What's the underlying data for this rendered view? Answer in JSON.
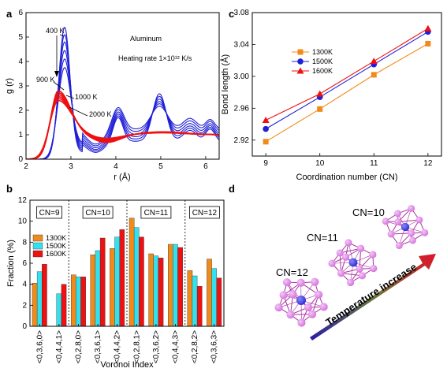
{
  "panels": {
    "a": "a",
    "b": "b",
    "c": "c",
    "d": "d"
  },
  "chart_data": [
    {
      "panel": "a",
      "type": "line",
      "xlabel": "r (Å)",
      "ylabel": "g (r)",
      "xlim": [
        2,
        6.3
      ],
      "ylim": [
        0,
        6
      ],
      "xticks": [
        "2",
        "3",
        "4",
        "5",
        "6"
      ],
      "yticks": [
        "0",
        "1",
        "2",
        "3",
        "4",
        "5",
        "6"
      ],
      "annotations": {
        "material": "Aluminum",
        "rate": "Heating rate 1×10¹² K/s",
        "t400": "400 K",
        "t900": "900 K",
        "t1000": "1000 K",
        "t2000": "2000 K"
      },
      "series": [
        {
          "color": "#1f1fd8",
          "temperature": 400,
          "peak1": 5.4,
          "min1": 0.28,
          "peak2": 2.95
        },
        {
          "color": "#1f1fd8",
          "temperature": 500,
          "peak1": 5.1,
          "min1": 0.34,
          "peak2": 2.75
        },
        {
          "color": "#1f1fd8",
          "temperature": 600,
          "peak1": 4.8,
          "min1": 0.4,
          "peak2": 2.55
        },
        {
          "color": "#1f1fd8",
          "temperature": 700,
          "peak1": 4.45,
          "min1": 0.47,
          "peak2": 2.35
        },
        {
          "color": "#1f1fd8",
          "temperature": 800,
          "peak1": 4.1,
          "min1": 0.55,
          "peak2": 2.15
        },
        {
          "color": "#1f1fd8",
          "temperature": 900,
          "peak1": 3.75,
          "min1": 0.62,
          "peak2": 1.95
        },
        {
          "color": "#ee1111",
          "temperature": 1000,
          "peak1": 2.8,
          "min1": 0.68
        },
        {
          "color": "#ee1111",
          "temperature": 1200,
          "peak1": 2.72,
          "min1": 0.72
        },
        {
          "color": "#ee1111",
          "temperature": 1400,
          "peak1": 2.64,
          "min1": 0.76
        },
        {
          "color": "#ee1111",
          "temperature": 1600,
          "peak1": 2.56,
          "min1": 0.79
        },
        {
          "color": "#ee1111",
          "temperature": 1800,
          "peak1": 2.48,
          "min1": 0.82
        },
        {
          "color": "#ee1111",
          "temperature": 2000,
          "peak1": 2.4,
          "min1": 0.85
        }
      ]
    },
    {
      "panel": "b",
      "type": "bar",
      "xlabel": "Voronoi Index",
      "ylabel": "Fraction (%)",
      "ylim": [
        0,
        12
      ],
      "yticks": [
        "0",
        "2",
        "4",
        "6",
        "8",
        "10",
        "12"
      ],
      "categories": [
        "<0,3,6,0>",
        "<0,4,4,1>",
        "<0,2,8,0>",
        "<0,3,6,1>",
        "<0,4,4,2>",
        "<0,2,8,1>",
        "<0,3,6,2>",
        "<0,4,4,3>",
        "<0,2,8,2>",
        "<0,3,6,3>"
      ],
      "groups": [
        {
          "label": "CN=9",
          "from": 0,
          "to": 1
        },
        {
          "label": "CN=10",
          "from": 2,
          "to": 4
        },
        {
          "label": "CN=11",
          "from": 5,
          "to": 7
        },
        {
          "label": "CN=12",
          "from": 8,
          "to": 9
        }
      ],
      "legend_position": "left",
      "series": [
        {
          "name": "1300K",
          "color": "#f08a1a",
          "values": [
            4.1,
            0,
            4.9,
            6.8,
            7.4,
            10.3,
            6.9,
            7.8,
            5.3,
            6.4
          ]
        },
        {
          "name": "1500K",
          "color": "#33e1ee",
          "values": [
            5.2,
            3.1,
            4.7,
            7.2,
            8.5,
            9.4,
            6.7,
            7.8,
            4.8,
            5.5
          ]
        },
        {
          "name": "1600K",
          "color": "#ee1111",
          "values": [
            5.9,
            4.0,
            4.7,
            8.4,
            9.2,
            8.5,
            6.5,
            7.5,
            3.8,
            4.6
          ]
        }
      ]
    },
    {
      "panel": "c",
      "type": "line",
      "xlabel": "Coordination number (CN)",
      "ylabel": "Bond length (Å)",
      "xlim": [
        8.75,
        12.25
      ],
      "ylim": [
        2.9,
        3.08
      ],
      "xticks": [
        "9",
        "10",
        "11",
        "12"
      ],
      "yticks": [
        "2.92",
        "2.96",
        "3.00",
        "3.04",
        "3.08"
      ],
      "x": [
        9,
        10,
        11,
        12
      ],
      "legend_position": "top-left",
      "series": [
        {
          "name": "1300K",
          "color": "#f08a1a",
          "marker": "square",
          "values": [
            2.918,
            2.959,
            3.002,
            3.041
          ]
        },
        {
          "name": "1500K",
          "color": "#1f1fd8",
          "marker": "circle",
          "values": [
            2.934,
            2.974,
            3.015,
            3.056
          ]
        },
        {
          "name": "1600K",
          "color": "#ee1111",
          "marker": "triangle",
          "values": [
            2.945,
            2.978,
            3.019,
            3.06
          ]
        }
      ]
    }
  ],
  "panel_d": {
    "cn10": "CN=10",
    "cn11": "CN=11",
    "cn12": "CN=12",
    "arrow_label": "Temperature increase",
    "arrow_from": "#2a1aa8",
    "arrow_to": "#e0102a",
    "cluster_color": "#d46fdc",
    "center_color": "#2a2ad8"
  }
}
